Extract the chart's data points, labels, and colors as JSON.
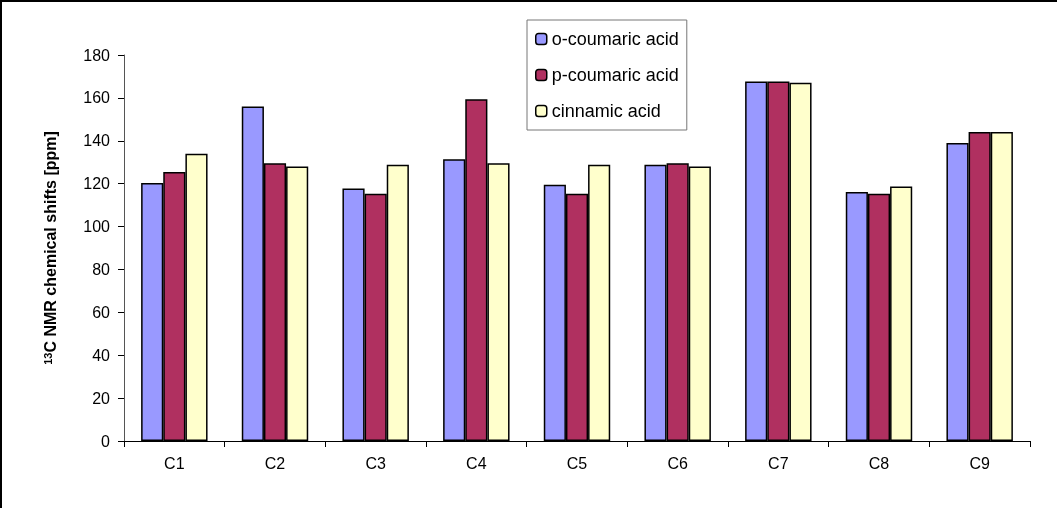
{
  "chart_data": {
    "type": "bar",
    "ylabel": "$^{13}$C NMR chemical shifts [ppm]",
    "categories": [
      "C1",
      "C2",
      "C3",
      "C4",
      "C5",
      "C6",
      "C7",
      "C8",
      "C9"
    ],
    "series": [
      {
        "name": "o-coumaric acid",
        "color": "#9999ff",
        "values": [
          120.3,
          156,
          117.8,
          131.4,
          119.5,
          128.8,
          167.7,
          116.1,
          139
        ]
      },
      {
        "name": "p-coumaric acid",
        "color": "#b03060",
        "values": [
          125.4,
          129.5,
          115.3,
          159.4,
          115.3,
          129.5,
          167.7,
          115.3,
          144.1
        ]
      },
      {
        "name": "cinnamic acid",
        "color": "#ffffcc",
        "values": [
          133.9,
          128,
          128.8,
          129.5,
          128.8,
          128,
          167.1,
          118.7,
          144.1
        ]
      }
    ],
    "ylim": [
      0,
      180
    ],
    "yticks": [
      0,
      20,
      40,
      60,
      80,
      100,
      120,
      140,
      160,
      180
    ],
    "grid": false,
    "legend": "top"
  }
}
